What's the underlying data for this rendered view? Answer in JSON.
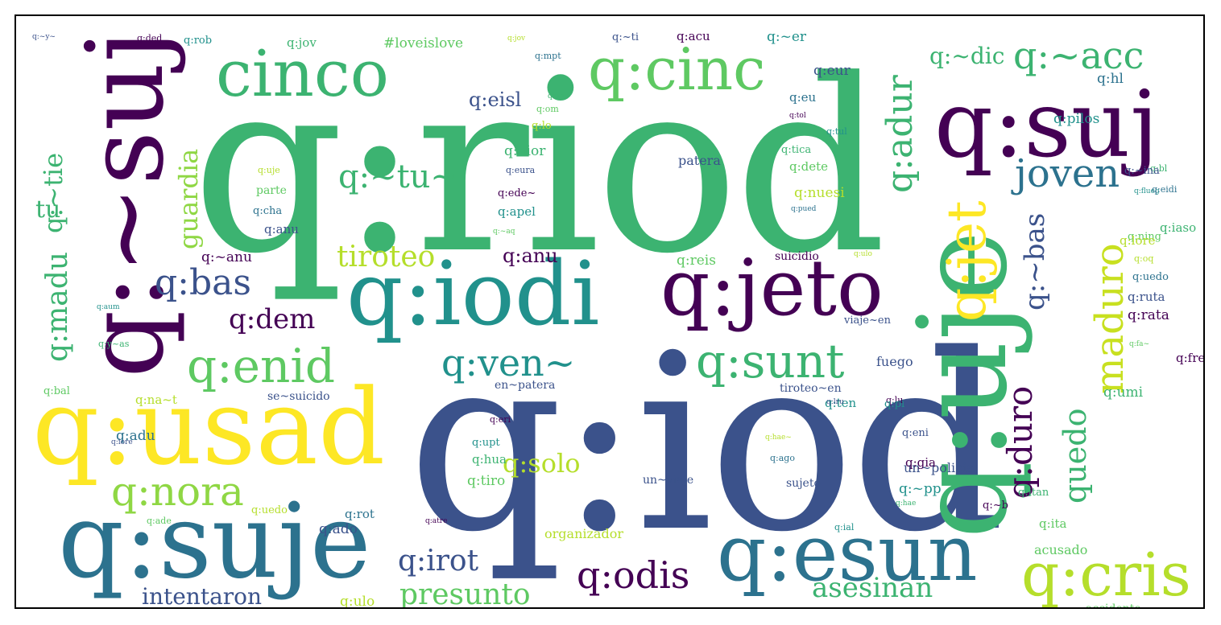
{
  "palette": {
    "purple": "#440154",
    "indigo": "#3b528b",
    "teal": "#21918c",
    "green": "#3cb371",
    "lime": "#8fd744",
    "yellow": "#fde725",
    "light": "#b5de2b"
  },
  "words": {
    "riod": "q:riod",
    "iod": "q:iod",
    "suj_v": "q:~suj",
    "cinco": "cinco",
    "cinc": "q:cinc",
    "suj": "q:suj",
    "uje_v": "q:uje",
    "jet_v": "q:jet",
    "iodi": "q:iodi",
    "jeto": "q:jeto",
    "usad": "q:usad",
    "suje": "q:suje",
    "esun": "q:esun",
    "cris": "q:cris",
    "enid": "q:enid",
    "sunt": "q:sunt",
    "nora": "q:nora",
    "ven": "q:ven~",
    "bas": "q:bas",
    "odis": "q:odis",
    "irot": "q:irot",
    "acc": "q:~acc",
    "adur_v": "q:adur",
    "joven": "joven",
    "tu_q": "q:~tu~",
    "tiroteo": "tiroteo",
    "guardia_v": "guardia",
    "madu_v": "q:madu",
    "tie_v": "q:~tie",
    "tu_v": "tu",
    "dem": "q:dem",
    "anu": "q:anu",
    "eisl": "q:eisl",
    "dic": "q:~dic",
    "bas_v": "q:~bas",
    "maduro_v": "maduro",
    "duro_v": "q:duro",
    "quedo_v": "quedo",
    "solo": "q:solo",
    "presunto": "presunto",
    "intentaron": "intentaron",
    "asesinan": "asesinan",
    "fuego": "fuego",
    "patera": "patera",
    "suicidio": "suicidio",
    "un_policia": "un~policia",
    "en_patera": "en~patera",
    "tiroteo_en": "tiroteo~en",
    "organizador": "organizador",
    "accidente": "accidente",
    "acusado": "acusado",
    "un_viaje": "un~viaje",
    "sujeto": "sujeto",
    "parte": "parte",
    "viaje_en": "viaje~en",
    "se_suicido": "se~suicido"
  },
  "small_words": [
    "q:~y~",
    "q:ded",
    "q:rob",
    "q:jov",
    "#loveislove",
    "q:jov",
    "q:mpt",
    "q:~ti",
    "q:acu",
    "q:~er",
    "q:onu",
    "q:om",
    "q:lo",
    "q:eu",
    "q:eur",
    "q:tol",
    "q:tul",
    "q:tica",
    "q:dete",
    "q:nuesi",
    "q:pued",
    "q:eura",
    "q:ede~",
    "q:apel",
    "q:nior",
    "q:~aq",
    "q:uje",
    "q:cha",
    "q:anu",
    "q:~anu",
    "q:aum",
    "q:y~as",
    "q:bal",
    "q:na~t",
    "q:adu",
    "q:iore",
    "q:eri",
    "q:upt",
    "q:hua",
    "q:tiro",
    "q:hae~",
    "q:ago",
    "q:eni",
    "q:gia",
    "q:~pp",
    "q:hae",
    "q:ade",
    "q:uedo",
    "q:rot",
    "q:ado",
    "q:atre",
    "q:ial",
    "q:itan",
    "q:ita",
    "q:ulo",
    "q:~no",
    "q:oven",
    "q:~b",
    "q:ten",
    "q:umi",
    "q:fa~",
    "q:oq",
    "q:uedo",
    "q:ruta",
    "q:rata",
    "q:flueg",
    "q:bl",
    "q:ning",
    "q:lore",
    "q:hl",
    "q:lru",
    "q:lu",
    "q:pi",
    "q:iaso",
    "q:reis",
    "q:ulo",
    "q:eidi",
    "q:~ina",
    "q:free",
    "q:pilos"
  ]
}
